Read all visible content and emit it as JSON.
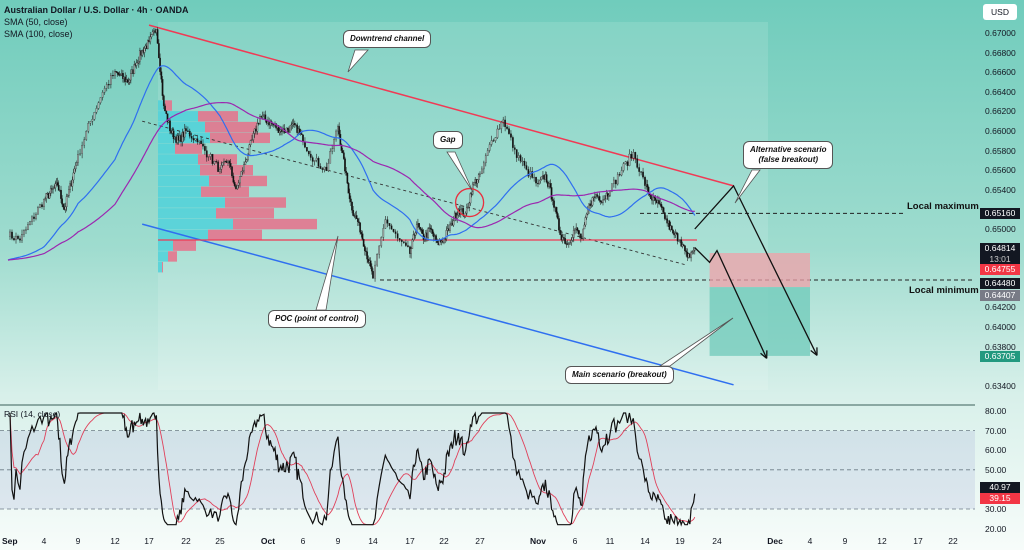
{
  "header": {
    "title": "Australian Dollar / U.S. Dollar · 4h · OANDA",
    "indicators": [
      "SMA (50, close)",
      "SMA (100, close)"
    ],
    "currency": "USD"
  },
  "chart_data": {
    "type": "candlestick",
    "title": "Australian Dollar / U.S. Dollar · 4h · OANDA",
    "interval": "4h",
    "ylim": [
      0.633,
      0.6715
    ],
    "y_ticks": [
      "0.67000",
      "0.66800",
      "0.66600",
      "0.66400",
      "0.66200",
      "0.66000",
      "0.65800",
      "0.65600",
      "0.65400",
      "0.65000",
      "0.64200",
      "0.64000",
      "0.63800",
      "0.63400"
    ],
    "x_ticks": [
      {
        "label": "Sep",
        "d": "09-01",
        "major": true
      },
      {
        "label": "4",
        "d": "09-04"
      },
      {
        "label": "9",
        "d": "09-09"
      },
      {
        "label": "12",
        "d": "09-12"
      },
      {
        "label": "17",
        "d": "09-17"
      },
      {
        "label": "22",
        "d": "09-22"
      },
      {
        "label": "25",
        "d": "09-25"
      },
      {
        "label": "Oct",
        "d": "10-01",
        "major": true
      },
      {
        "label": "6",
        "d": "10-06"
      },
      {
        "label": "9",
        "d": "10-09"
      },
      {
        "label": "14",
        "d": "10-14"
      },
      {
        "label": "17",
        "d": "10-17"
      },
      {
        "label": "22",
        "d": "10-22"
      },
      {
        "label": "27",
        "d": "10-27"
      },
      {
        "label": "Nov",
        "d": "11-01",
        "major": true
      },
      {
        "label": "6",
        "d": "11-06"
      },
      {
        "label": "11",
        "d": "11-11"
      },
      {
        "label": "14",
        "d": "11-14"
      },
      {
        "label": "19",
        "d": "11-19"
      },
      {
        "label": "24",
        "d": "11-24"
      },
      {
        "label": "Dec",
        "d": "12-01",
        "major": true
      },
      {
        "label": "4",
        "d": "12-04"
      },
      {
        "label": "9",
        "d": "12-09"
      },
      {
        "label": "12",
        "d": "12-12"
      },
      {
        "label": "17",
        "d": "12-17"
      },
      {
        "label": "22",
        "d": "12-22"
      }
    ],
    "price_path": [
      [
        "09-01",
        0.6494
      ],
      [
        "09-02",
        0.6489
      ],
      [
        "09-04",
        0.653
      ],
      [
        "09-06",
        0.6545
      ],
      [
        "09-07",
        0.652
      ],
      [
        "09-09",
        0.6575
      ],
      [
        "09-10",
        0.661
      ],
      [
        "09-11",
        0.664
      ],
      [
        "09-12",
        0.666
      ],
      [
        "09-14",
        0.665
      ],
      [
        "09-15",
        0.6668
      ],
      [
        "09-16",
        0.6682
      ],
      [
        "09-17",
        0.669
      ],
      [
        "09-18",
        0.6705
      ],
      [
        "09-19",
        0.6625
      ],
      [
        "09-20",
        0.6598
      ],
      [
        "09-21",
        0.659
      ],
      [
        "09-22",
        0.66
      ],
      [
        "09-23",
        0.659
      ],
      [
        "09-24",
        0.6575
      ],
      [
        "09-25",
        0.656
      ],
      [
        "09-26",
        0.657
      ],
      [
        "09-27",
        0.654
      ],
      [
        "09-28",
        0.6565
      ],
      [
        "09-30",
        0.6615
      ],
      [
        "10-01",
        0.661
      ],
      [
        "10-03",
        0.66
      ],
      [
        "10-05",
        0.6605
      ],
      [
        "10-06",
        0.659
      ],
      [
        "10-07",
        0.657
      ],
      [
        "10-08",
        0.656
      ],
      [
        "10-09",
        0.6605
      ],
      [
        "10-10",
        0.656
      ],
      [
        "10-11",
        0.652
      ],
      [
        "10-12",
        0.6505
      ],
      [
        "10-14",
        0.645
      ],
      [
        "10-15",
        0.651
      ],
      [
        "10-16",
        0.649
      ],
      [
        "10-17",
        0.6475
      ],
      [
        "10-18",
        0.6505
      ],
      [
        "10-19",
        0.649
      ],
      [
        "10-20",
        0.65
      ],
      [
        "10-21",
        0.6485
      ],
      [
        "10-22",
        0.649
      ],
      [
        "10-23",
        0.6505
      ],
      [
        "10-24",
        0.652
      ],
      [
        "10-25",
        0.6515
      ],
      [
        "10-26",
        0.6545
      ],
      [
        "10-27",
        0.6555
      ],
      [
        "10-28",
        0.659
      ],
      [
        "10-29",
        0.6612
      ],
      [
        "10-30",
        0.658
      ],
      [
        "10-31",
        0.656
      ],
      [
        "11-01",
        0.6545
      ],
      [
        "11-02",
        0.6555
      ],
      [
        "11-03",
        0.653
      ],
      [
        "11-04",
        0.6495
      ],
      [
        "11-05",
        0.6485
      ],
      [
        "11-06",
        0.65
      ],
      [
        "11-07",
        0.649
      ],
      [
        "11-08",
        0.6525
      ],
      [
        "11-09",
        0.6535
      ],
      [
        "11-10",
        0.653
      ],
      [
        "11-11",
        0.654
      ],
      [
        "11-12",
        0.656
      ],
      [
        "11-13",
        0.6578
      ],
      [
        "11-14",
        0.6545
      ],
      [
        "11-15",
        0.653
      ],
      [
        "11-16",
        0.6525
      ],
      [
        "11-17",
        0.651
      ],
      [
        "11-18",
        0.6495
      ],
      [
        "11-19",
        0.649
      ],
      [
        "11-20",
        0.647
      ],
      [
        "11-21",
        0.6481
      ]
    ],
    "sma": [
      {
        "name": "SMA (50, close)",
        "period": 50,
        "color": "#2f6ff0"
      },
      {
        "name": "SMA (100, close)",
        "period": 100,
        "color": "#9c27b0"
      }
    ],
    "volume_profile": {
      "rows": [
        [
          0.6626,
          7,
          7
        ],
        [
          0.6615,
          40,
          40
        ],
        [
          0.6604,
          47,
          52
        ],
        [
          0.6593,
          52,
          60
        ],
        [
          0.6582,
          17,
          27
        ],
        [
          0.6571,
          40,
          39
        ],
        [
          0.656,
          42,
          53
        ],
        [
          0.6549,
          51,
          58
        ],
        [
          0.6538,
          43,
          48
        ],
        [
          0.6527,
          67,
          61
        ],
        [
          0.6516,
          58,
          58
        ],
        [
          0.6505,
          75,
          84
        ],
        [
          0.6494,
          50,
          54
        ],
        [
          0.6483,
          15,
          23
        ],
        [
          0.6472,
          10,
          9
        ],
        [
          0.6461,
          4,
          1
        ]
      ],
      "up_color": "#4fd1d9",
      "down_color": "#e8708a"
    },
    "poc": 0.64888,
    "channel": {
      "upper": [
        [
          "09-17",
          0.6708
        ],
        [
          "11-26",
          0.6544
        ]
      ],
      "lower": [
        [
          "09-16",
          0.6505
        ],
        [
          "11-26",
          0.6341
        ]
      ],
      "mid": [
        [
          "09-16",
          0.661
        ],
        [
          "11-20",
          0.6463
        ]
      ]
    },
    "levels": {
      "local_maximum": 0.6516,
      "local_minimum": 0.6448
    },
    "position": {
      "stop": 0.64755,
      "entry": 0.64407,
      "target": 0.63705,
      "from": "11-23",
      "to": "12-04"
    },
    "scenarios": {
      "main": [
        [
          "11-21",
          0.6481
        ],
        [
          "11-23",
          0.6466
        ],
        [
          "11-24",
          0.6478
        ],
        [
          "11-30",
          0.6368
        ]
      ],
      "alternative": [
        [
          "11-21",
          0.65
        ],
        [
          "11-26",
          0.6544
        ],
        [
          "12-05",
          0.6371
        ]
      ]
    },
    "gap": {
      "d": "10-25",
      "price": 0.6527
    },
    "rsi": {
      "name": "RSI (14, close)",
      "period": 14,
      "ma_color": "#e0405a",
      "ylim": [
        20,
        80
      ],
      "ticks": [
        "80.00",
        "70.00",
        "60.00",
        "50.00",
        "30.00",
        "20.00"
      ],
      "bands": [
        70,
        50,
        30
      ]
    }
  },
  "price_tags": [
    {
      "label": "0.65160",
      "color": "#131722"
    },
    {
      "label": "0.64814",
      "sub": "13:01",
      "color": "#131722"
    },
    {
      "label": "0.64755",
      "color": "#f23645"
    },
    {
      "label": "0.64480",
      "color": "#131722"
    },
    {
      "label": "0.64407",
      "color": "#787b86"
    },
    {
      "label": "0.63705",
      "color": "#22997f"
    }
  ],
  "rsi_tags": [
    {
      "label": "40.97",
      "color": "#131722"
    },
    {
      "label": "39.15",
      "color": "#f23645"
    }
  ],
  "annotations": {
    "downtrend": "Downtrend channel",
    "gap": "Gap",
    "alt1": "Alternative scenario",
    "alt2": "(false breakout)",
    "poc": "POC (point of control)",
    "main": "Main scenario (breakout)",
    "local_max": "Local maximum",
    "local_min": "Local minimum"
  },
  "colors": {
    "bull": "#a9b4b2",
    "bear": "#111111",
    "channel_upper": "#f03a55",
    "channel_lower": "#2f6ff0",
    "poc": "#f03a55"
  }
}
